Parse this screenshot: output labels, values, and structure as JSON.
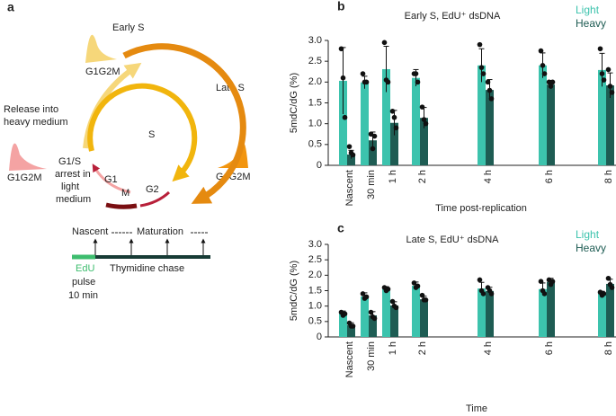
{
  "diagram": {
    "panel_label": "a",
    "early_s": "Early S",
    "late_s": "Late S",
    "g1g2m_top": "G1G2M",
    "g1g2m_left": "G1G2M",
    "g1g2m_right": "G1G2M",
    "release": [
      "Release into",
      "heavy medium"
    ],
    "arrest": [
      "G1/S",
      "arrest in",
      "light",
      "medium"
    ],
    "s": "S",
    "g1": "G1",
    "m": "M",
    "g2": "G2",
    "nascent": "Nascent",
    "maturation": "Maturation",
    "edu": "EdU",
    "pulse": [
      "pulse",
      "10 min"
    ],
    "chase": "Thymidine chase"
  },
  "chart_data": [
    {
      "type": "bar",
      "panel_label": "b",
      "title": "Early S, EdU⁺ dsDNA",
      "ylabel": "5mdC/dG (%)",
      "xlabel": "Time post-replication",
      "categories": [
        "Nascent",
        "30 min",
        "1 h",
        "2 h",
        "4 h",
        "6 h",
        "8 h"
      ],
      "ylim": [
        0,
        3
      ],
      "yticks": [
        0,
        0.5,
        {
          "value": 1,
          "label": "1.0"
        },
        1.5,
        {
          "value": 2,
          "label": "2.0"
        },
        2.5,
        {
          "value": 3,
          "label": "3.0"
        }
      ],
      "series": [
        {
          "name": "Light",
          "color": "#3cc3ad",
          "values": [
            2.03,
            1.99,
            2.31,
            2.1,
            2.4,
            2.4,
            2.29
          ],
          "errors": [
            0.8,
            0.15,
            0.55,
            0.2,
            0.4,
            0.3,
            0.4
          ],
          "points": [
            [
              2.8,
              2.1,
              1.15
            ],
            [
              2.2,
              2.0,
              2.0
            ],
            [
              2.95,
              2.05,
              2.0
            ],
            [
              2.2,
              2.2,
              2.0
            ],
            [
              2.9,
              2.35,
              2.2
            ],
            [
              2.75,
              2.4,
              2.2
            ],
            [
              2.8,
              2.2,
              2.05
            ]
          ]
        },
        {
          "name": "Heavy",
          "color": "#1e5c53",
          "values": [
            0.26,
            0.6,
            1.02,
            1.14,
            1.81,
            1.94,
            1.92
          ],
          "errors": [
            0.1,
            0.2,
            0.3,
            0.25,
            0.25,
            0.1,
            0.3
          ],
          "points": [
            [
              0.45,
              0.3,
              0.25
            ],
            [
              0.75,
              0.4,
              0.7
            ],
            [
              1.3,
              1.15,
              0.9
            ],
            [
              1.4,
              1.1,
              1.0
            ],
            [
              2.0,
              1.8,
              1.6
            ],
            [
              2.0,
              1.9,
              2.0
            ],
            [
              2.3,
              1.9,
              1.75
            ]
          ]
        }
      ]
    },
    {
      "type": "bar",
      "panel_label": "c",
      "title": "Late S, EdU⁺ dsDNA",
      "ylabel": "5mdC/dG (%)",
      "xlabel": "Time",
      "categories": [
        "Nascent",
        "30 min",
        "1 h",
        "2 h",
        "4 h",
        "6 h",
        "8 h"
      ],
      "ylim": [
        0,
        3
      ],
      "yticks": [
        0,
        0.5,
        {
          "value": 1,
          "label": "1.0"
        },
        1.5,
        {
          "value": 2,
          "label": "2.0"
        },
        2.5,
        {
          "value": 3,
          "label": "3.0"
        }
      ],
      "series": [
        {
          "name": "Light",
          "color": "#3cc3ad",
          "values": [
            0.76,
            1.31,
            1.55,
            1.66,
            1.57,
            1.55,
            1.4
          ],
          "errors": [
            0.08,
            0.12,
            0.08,
            0.12,
            0.2,
            0.2,
            0.08
          ],
          "points": [
            [
              0.8,
              0.7,
              0.75
            ],
            [
              1.4,
              1.25,
              1.3
            ],
            [
              1.6,
              1.5,
              1.55
            ],
            [
              1.75,
              1.6,
              1.65
            ],
            [
              1.85,
              1.5,
              1.4
            ],
            [
              1.8,
              1.5,
              1.4
            ],
            [
              1.45,
              1.35,
              1.4
            ]
          ]
        },
        {
          "name": "Heavy",
          "color": "#1e5c53",
          "values": [
            0.38,
            0.7,
            1.02,
            1.22,
            1.49,
            1.78,
            1.72
          ],
          "errors": [
            0.08,
            0.12,
            0.12,
            0.1,
            0.12,
            0.12,
            0.15
          ],
          "points": [
            [
              0.45,
              0.35,
              0.35
            ],
            [
              0.8,
              0.65,
              0.6
            ],
            [
              1.15,
              1.0,
              0.95
            ],
            [
              1.35,
              1.2,
              1.2
            ],
            [
              1.6,
              1.5,
              1.4
            ],
            [
              1.85,
              1.7,
              1.8
            ],
            [
              1.9,
              1.7,
              1.6
            ]
          ]
        }
      ]
    }
  ]
}
